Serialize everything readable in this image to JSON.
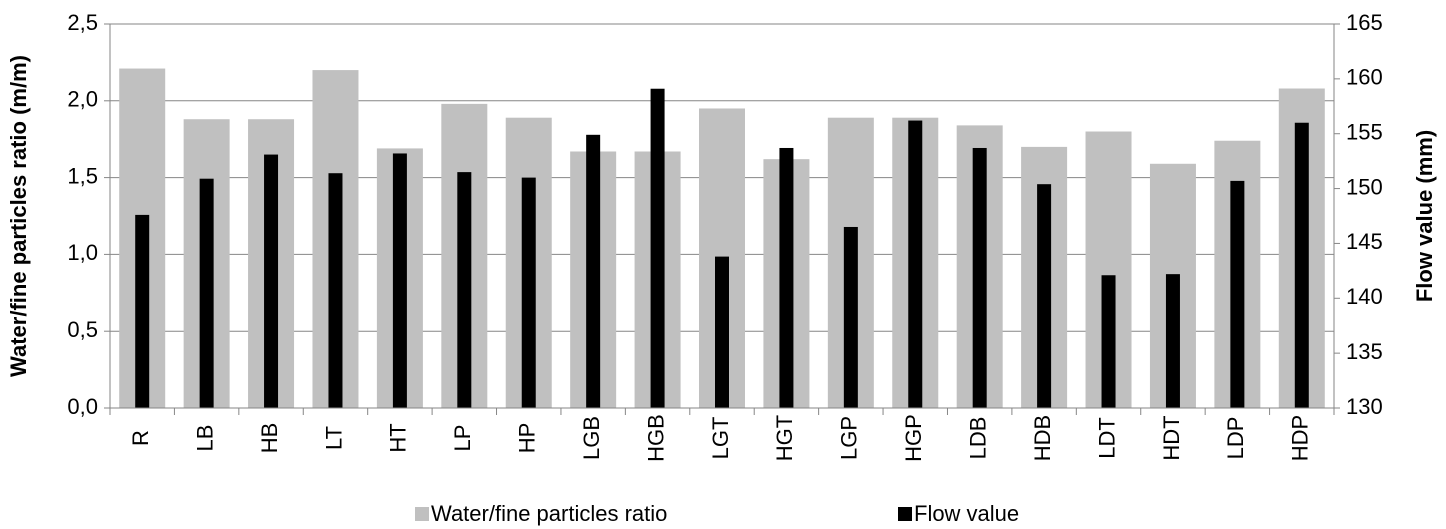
{
  "chart_data": {
    "type": "bar",
    "categories": [
      "R",
      "LB",
      "HB",
      "LT",
      "HT",
      "LP",
      "HP",
      "LGB",
      "HGB",
      "LGT",
      "HGT",
      "LGP",
      "HGP",
      "LDB",
      "HDB",
      "LDT",
      "HDT",
      "LDP",
      "HDP"
    ],
    "series": [
      {
        "name": "Water/fine particles ratio",
        "color": "#c0c0c0",
        "values": [
          2.21,
          1.88,
          1.88,
          2.2,
          1.69,
          1.98,
          1.89,
          1.67,
          1.67,
          1.95,
          1.62,
          1.89,
          1.89,
          1.84,
          1.7,
          1.8,
          1.59,
          1.74,
          2.08
        ]
      },
      {
        "name": "Flow value",
        "color": "#000000",
        "axis": "y2",
        "values": [
          147.6,
          150.9,
          153.1,
          151.4,
          153.2,
          151.5,
          151.0,
          154.9,
          159.1,
          143.8,
          153.7,
          146.5,
          156.2,
          153.7,
          150.4,
          142.1,
          142.2,
          150.7,
          156.0
        ]
      }
    ],
    "y_label": "Water/fine particles ratio (m/m)",
    "y2_label": "Flow value (mm)",
    "ylim": [
      0,
      2.5
    ],
    "yticks": [
      {
        "value": 0,
        "label": "0,0"
      },
      {
        "value": 0.5,
        "label": "0,5"
      },
      {
        "value": 1,
        "label": "1,0"
      },
      {
        "value": 1.5,
        "label": "1,5"
      },
      {
        "value": 2,
        "label": "2,0"
      },
      {
        "value": 2.5,
        "label": "2,5"
      }
    ],
    "y2lim": [
      130,
      165
    ],
    "y2ticks": [
      130,
      135,
      140,
      145,
      150,
      155,
      160,
      165
    ],
    "grid": true,
    "legend": "bottom"
  }
}
